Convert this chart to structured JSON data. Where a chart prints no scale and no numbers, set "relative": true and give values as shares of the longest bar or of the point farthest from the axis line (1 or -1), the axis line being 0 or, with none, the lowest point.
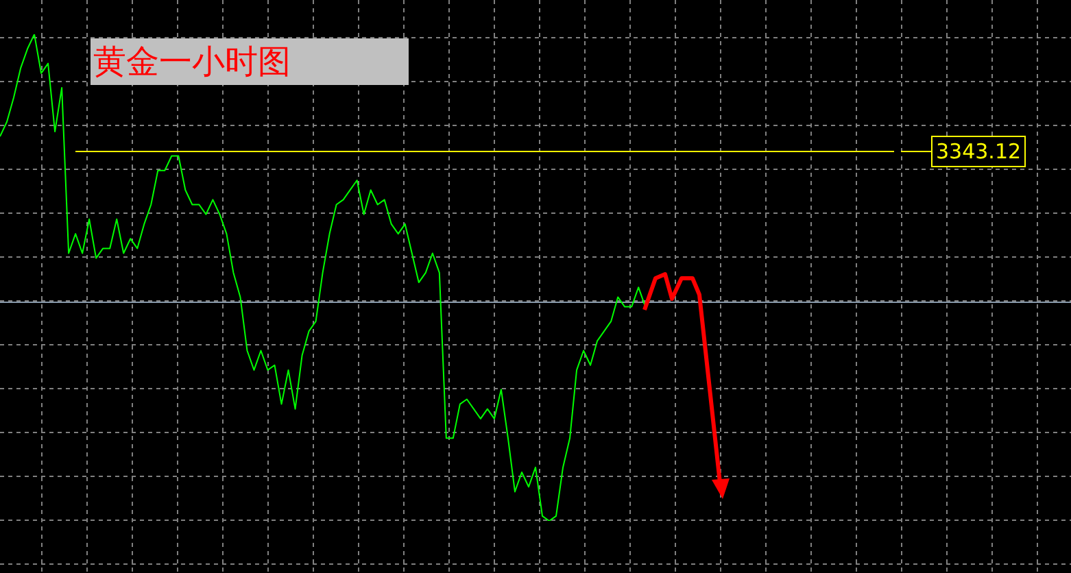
{
  "chart_data": {
    "type": "line",
    "title": "黄金一小时图",
    "relative": true,
    "grid": true,
    "legend": false,
    "marker": "none",
    "line_style": "solid",
    "categories": [
      null,
      null,
      null,
      null,
      null,
      null,
      null,
      null,
      null,
      null,
      null,
      null,
      null,
      null,
      null,
      null,
      null,
      null,
      null,
      null,
      null,
      null,
      null,
      null,
      null,
      null,
      null,
      null,
      null,
      null,
      null,
      null,
      null,
      null,
      null,
      null,
      null,
      null,
      null,
      null,
      null,
      null,
      null,
      null,
      null,
      null,
      null,
      null,
      null,
      null,
      null,
      null,
      null,
      null,
      null,
      null,
      null,
      null,
      null,
      null,
      null,
      null,
      null,
      null,
      null,
      null,
      null,
      null,
      null,
      null,
      null,
      null,
      null,
      null,
      null,
      null,
      null,
      null,
      null,
      null,
      null,
      null,
      null,
      null,
      null,
      null,
      null,
      null,
      null,
      null,
      null,
      null,
      null,
      null,
      null,
      null,
      null,
      null,
      null,
      null,
      null,
      null,
      null,
      null,
      null,
      null,
      null,
      null,
      null,
      null,
      null,
      null,
      null,
      null,
      null,
      null,
      null,
      null,
      null,
      null,
      null,
      null,
      null,
      null,
      null,
      null,
      null,
      null,
      null,
      null,
      null,
      null,
      null,
      null,
      null,
      null,
      null,
      null,
      null,
      null,
      null,
      null,
      null,
      null,
      null,
      null,
      null,
      null,
      null,
      null,
      null,
      null,
      null,
      null,
      null,
      null,
      null
    ],
    "series": [
      {
        "color": "#00ff00",
        "values": [
          0.79,
          0.82,
          0.87,
          0.93,
          0.97,
          1.0,
          0.92,
          0.94,
          0.8,
          0.89,
          0.55,
          0.59,
          0.55,
          0.62,
          0.54,
          0.56,
          0.56,
          0.62,
          0.55,
          0.58,
          0.56,
          0.61,
          0.65,
          0.72,
          0.72,
          0.75,
          0.75,
          0.68,
          0.65,
          0.65,
          0.63,
          0.66,
          0.63,
          0.59,
          0.51,
          0.46,
          0.35,
          0.31,
          0.35,
          0.31,
          0.32,
          0.24,
          0.31,
          0.23,
          0.34,
          0.39,
          0.41,
          0.51,
          0.59,
          0.65,
          0.66,
          0.68,
          0.7,
          0.63,
          0.68,
          0.65,
          0.66,
          0.61,
          0.59,
          0.61,
          0.55,
          0.49,
          0.51,
          0.55,
          0.51,
          0.17,
          0.17,
          0.24,
          0.25,
          0.23,
          0.21,
          0.23,
          0.21,
          0.27,
          0.17,
          0.06,
          0.1,
          0.07,
          0.11,
          0.01,
          0.0,
          0.01,
          0.11,
          0.17,
          0.31,
          0.35,
          0.32,
          0.37,
          0.39,
          0.41,
          0.46,
          0.44,
          0.44,
          0.48,
          0.44,
          null,
          null,
          null,
          null,
          null,
          null,
          null,
          null,
          null,
          null,
          null,
          null,
          null,
          null,
          null,
          null,
          null,
          null,
          null,
          null,
          null,
          null,
          null,
          null,
          null,
          null,
          null,
          null,
          null,
          null,
          null,
          null,
          null,
          null,
          null,
          null,
          null,
          null,
          null,
          null,
          null,
          null,
          null,
          null,
          null,
          null,
          null,
          null,
          null,
          null,
          null,
          null,
          null,
          null,
          null,
          null,
          null,
          null,
          null,
          null,
          null,
          null
        ]
      }
    ],
    "annotations": [
      "3343.12"
    ],
    "ref_lines": [
      {
        "axis": "y",
        "value": 0.76,
        "color": "#ffff00"
      },
      {
        "axis": "y",
        "value": 0.45,
        "color": "#8899aa"
      }
    ]
  }
}
